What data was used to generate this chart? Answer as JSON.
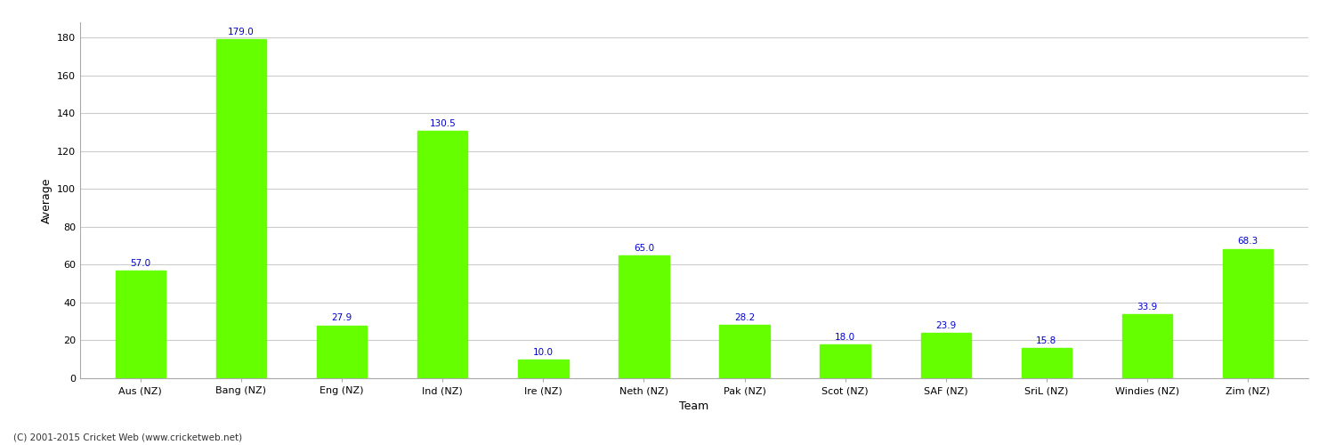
{
  "categories": [
    "Aus (NZ)",
    "Bang (NZ)",
    "Eng (NZ)",
    "Ind (NZ)",
    "Ire (NZ)",
    "Neth (NZ)",
    "Pak (NZ)",
    "Scot (NZ)",
    "SAF (NZ)",
    "SriL (NZ)",
    "Windies (NZ)",
    "Zim (NZ)"
  ],
  "values": [
    57.0,
    179.0,
    27.9,
    130.5,
    10.0,
    65.0,
    28.2,
    18.0,
    23.9,
    15.8,
    33.9,
    68.3
  ],
  "bar_color": "#66ff00",
  "bar_edge_color": "#66ff00",
  "value_color": "#0000cc",
  "xlabel": "Team",
  "ylabel": "Average",
  "ylim": [
    0,
    188
  ],
  "yticks": [
    0,
    20,
    40,
    60,
    80,
    100,
    120,
    140,
    160,
    180
  ],
  "grid_color": "#cccccc",
  "background_color": "#ffffff",
  "footer_text": "(C) 2001-2015 Cricket Web (www.cricketweb.net)",
  "axis_label_fontsize": 9,
  "tick_fontsize": 8,
  "value_fontsize": 7.5,
  "bar_width": 0.5
}
